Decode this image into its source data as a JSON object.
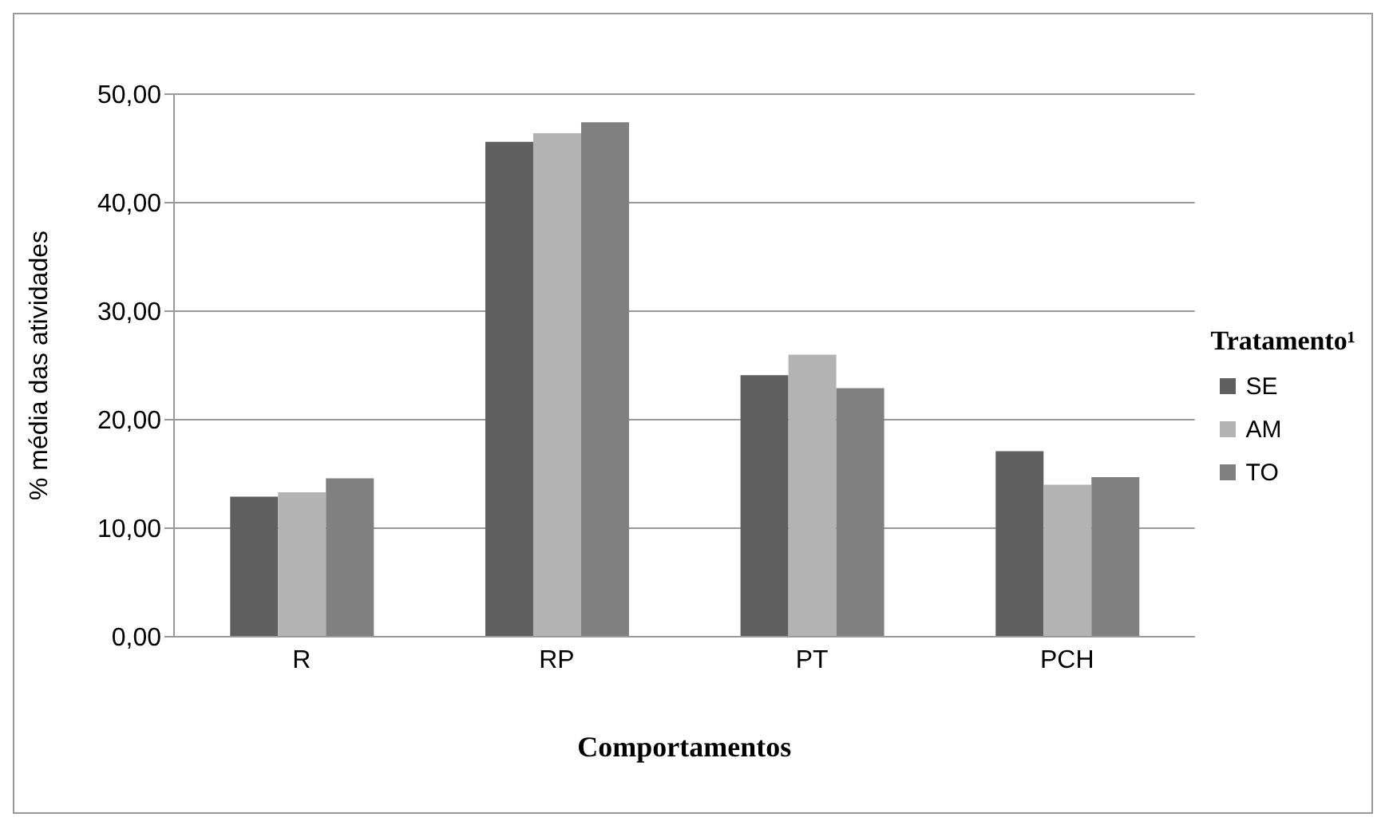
{
  "chart_data": {
    "type": "bar",
    "xlabel": "Comportamentos",
    "ylabel": "% média das atividades",
    "legend_title": "Tratamento¹",
    "categories": [
      "R",
      "RP",
      "PT",
      "PCH"
    ],
    "series": [
      {
        "name": "SE",
        "color": "#5f5f5f",
        "values": [
          12.9,
          45.6,
          24.1,
          17.1
        ]
      },
      {
        "name": "AM",
        "color": "#b3b3b3",
        "values": [
          13.3,
          46.4,
          26.0,
          14.0
        ]
      },
      {
        "name": "TO",
        "color": "#808080",
        "values": [
          14.6,
          47.4,
          22.9,
          14.7
        ]
      }
    ],
    "ylim": [
      0,
      50
    ],
    "yticks": [
      {
        "value": 0,
        "label": "0,00"
      },
      {
        "value": 10,
        "label": "10,00"
      },
      {
        "value": 20,
        "label": "20,00"
      },
      {
        "value": 30,
        "label": "30,00"
      },
      {
        "value": 40,
        "label": "40,00"
      },
      {
        "value": 50,
        "label": "50,00"
      }
    ],
    "grid": "y",
    "legend": "right"
  }
}
